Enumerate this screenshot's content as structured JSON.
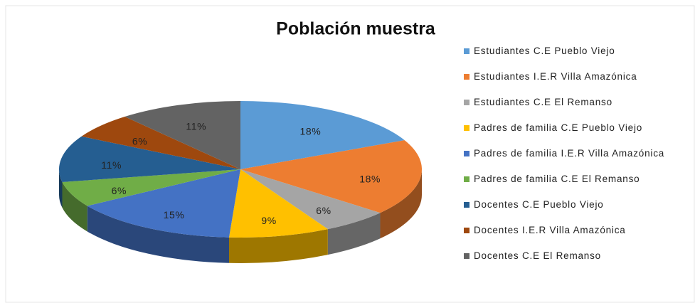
{
  "chart_data": {
    "type": "pie",
    "title": "Población muestra",
    "categories": [
      "Estudiantes C.E Pueblo Viejo",
      "Estudiantes I.E.R Villa Amazónica",
      "Estudiantes C.E El Remanso",
      "Padres de familia C.E Pueblo Viejo",
      "Padres de familia I.E.R Villa Amazónica",
      "Padres de familia C.E El Remanso",
      "Docentes C.E Pueblo Viejo",
      "Docentes I.E.R Villa Amazónica",
      "Docentes C.E El Remanso"
    ],
    "values": [
      18,
      18,
      6,
      9,
      15,
      6,
      11,
      6,
      11
    ],
    "value_labels": [
      "18%",
      "18%",
      "6%",
      "9%",
      "15%",
      "6%",
      "11%",
      "6%",
      "11%"
    ],
    "colors": [
      "#5B9BD5",
      "#ED7D31",
      "#A5A5A5",
      "#FFC000",
      "#4472C4",
      "#70AD47",
      "#255E91",
      "#9E480E",
      "#636363"
    ],
    "legend": "right"
  }
}
